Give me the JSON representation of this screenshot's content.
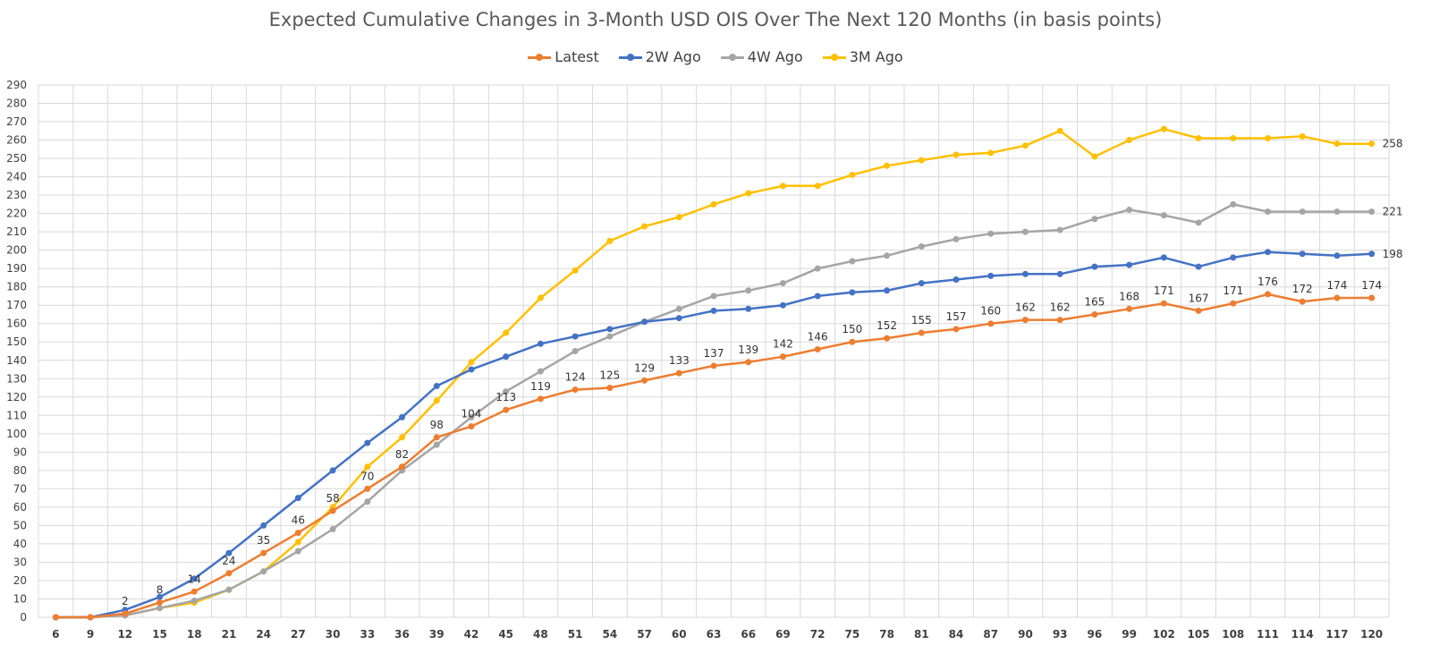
{
  "chart_data": {
    "type": "line",
    "title": "Expected Cumulative Changes in 3-Month USD OIS Over The Next 120 Months (in basis points)",
    "xlabel": "",
    "ylabel": "",
    "x": [
      6,
      9,
      12,
      15,
      18,
      21,
      24,
      27,
      30,
      33,
      36,
      39,
      42,
      45,
      48,
      51,
      54,
      57,
      60,
      63,
      66,
      69,
      72,
      75,
      78,
      81,
      84,
      87,
      90,
      93,
      96,
      99,
      102,
      105,
      108,
      111,
      114,
      117,
      120
    ],
    "ylim": [
      0,
      290
    ],
    "y_ticks": [
      0,
      10,
      20,
      30,
      40,
      50,
      60,
      70,
      80,
      90,
      100,
      110,
      120,
      130,
      140,
      150,
      160,
      170,
      180,
      190,
      200,
      210,
      220,
      230,
      240,
      250,
      260,
      270,
      280,
      290
    ],
    "grid": true,
    "legend_position": "top",
    "series": [
      {
        "name": "Latest",
        "color": "#ED7D31",
        "values": [
          0,
          0,
          2,
          8,
          14,
          24,
          35,
          46,
          58,
          70,
          82,
          98,
          104,
          113,
          119,
          124,
          125,
          129,
          133,
          137,
          139,
          142,
          146,
          150,
          152,
          155,
          157,
          160,
          162,
          162,
          165,
          168,
          171,
          167,
          171,
          176,
          172,
          174,
          174
        ],
        "data_labels": [
          "",
          "",
          "2",
          "8",
          "14",
          "24",
          "35",
          "46",
          "58",
          "70",
          "82",
          "98",
          "104",
          "113",
          "119",
          "124",
          "125",
          "129",
          "133",
          "137",
          "139",
          "142",
          "146",
          "150",
          "152",
          "155",
          "157",
          "160",
          "162",
          "162",
          "165",
          "168",
          "171",
          "167",
          "171",
          "176",
          "172",
          "174",
          "174"
        ]
      },
      {
        "name": "2W Ago",
        "color": "#4472C4",
        "values": [
          0,
          0,
          4,
          11,
          21,
          35,
          50,
          65,
          80,
          95,
          109,
          126,
          135,
          142,
          149,
          153,
          157,
          161,
          163,
          167,
          168,
          170,
          175,
          177,
          178,
          182,
          184,
          186,
          187,
          187,
          191,
          192,
          196,
          191,
          196,
          199,
          198,
          197,
          198
        ],
        "end_label": "198"
      },
      {
        "name": "4W Ago",
        "color": "#A5A5A5",
        "values": [
          0,
          0,
          1,
          5,
          9,
          15,
          25,
          36,
          48,
          63,
          80,
          94,
          109,
          123,
          134,
          145,
          153,
          161,
          168,
          175,
          178,
          182,
          190,
          194,
          197,
          202,
          206,
          209,
          210,
          211,
          217,
          222,
          219,
          215,
          225,
          221,
          221,
          221,
          221
        ],
        "end_label": "221"
      },
      {
        "name": "3M Ago",
        "color": "#FFC000",
        "values": [
          0,
          0,
          1,
          5,
          8,
          15,
          25,
          41,
          60,
          82,
          98,
          118,
          139,
          155,
          174,
          189,
          205,
          213,
          218,
          225,
          231,
          235,
          235,
          241,
          246,
          249,
          252,
          253,
          257,
          265,
          251,
          260,
          266,
          261,
          261,
          261,
          262,
          258,
          258
        ],
        "end_label": "258"
      }
    ]
  }
}
